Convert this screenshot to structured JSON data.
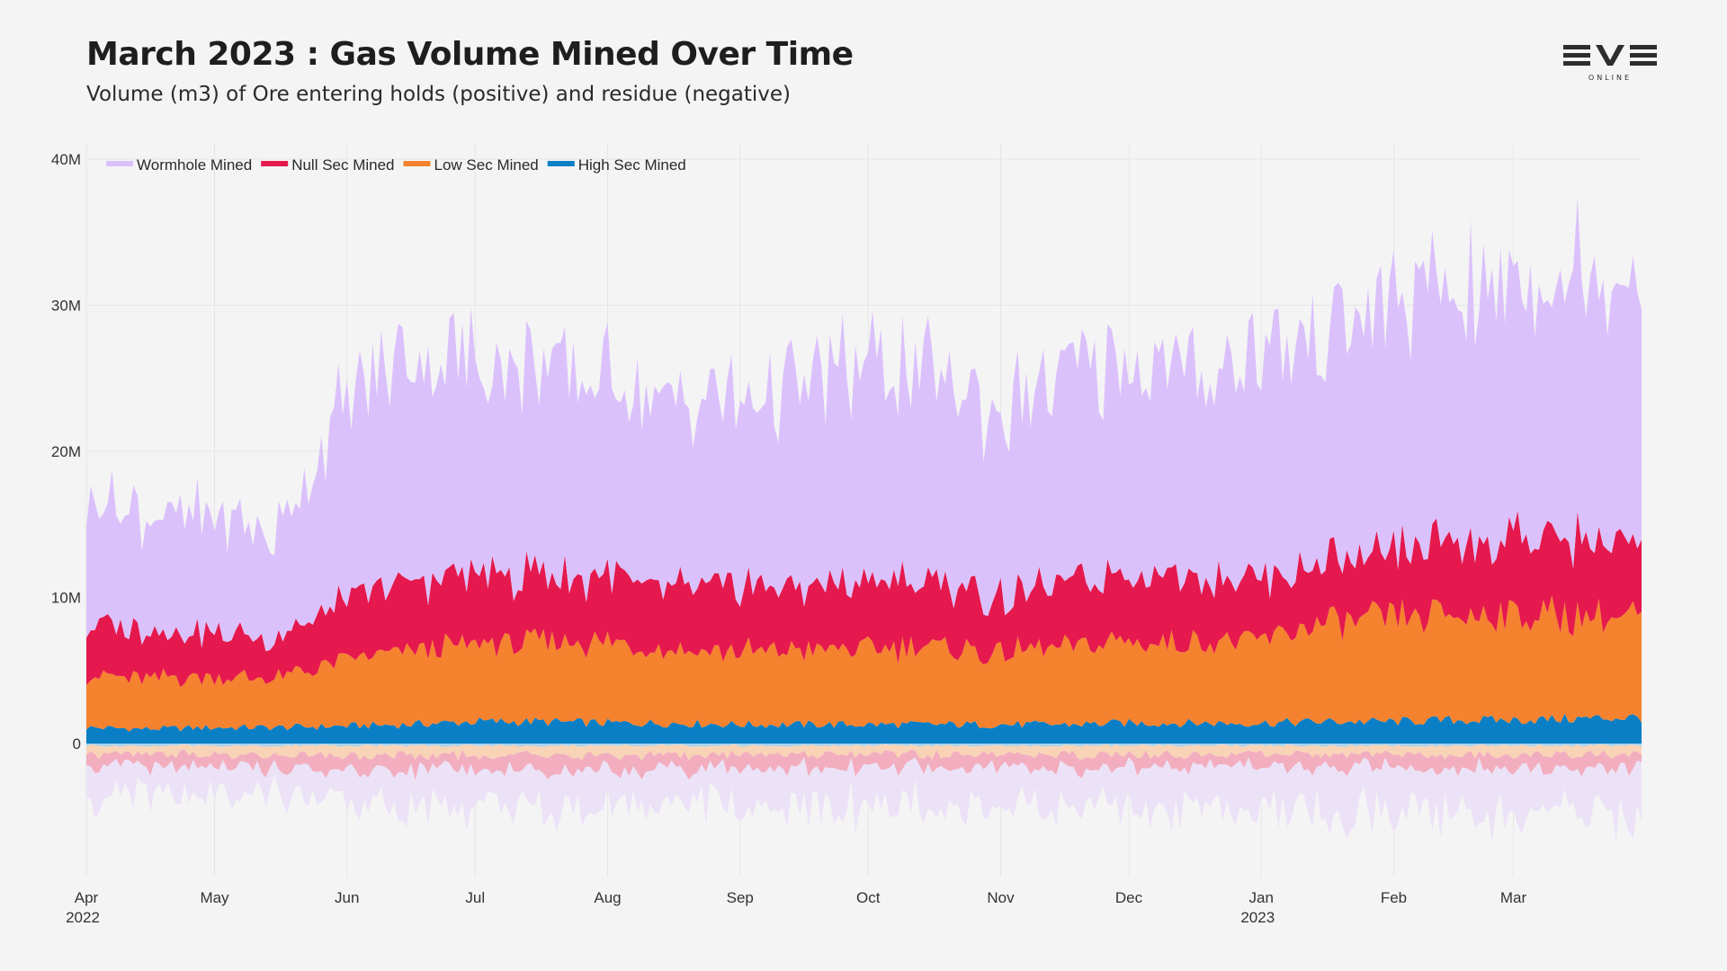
{
  "header": {
    "title": "March 2023 : Gas Volume Mined Over Time",
    "subtitle": "Volume (m3) of Ore entering holds (positive) and residue (negative)",
    "logo_text": "EVE",
    "logo_subtext": "ONLINE"
  },
  "chart_data": {
    "type": "area",
    "title": "March 2023 : Gas Volume Mined Over Time",
    "subtitle": "Volume (m3) of Ore entering holds (positive) and residue (negative)",
    "xlabel": "",
    "ylabel": "",
    "x_range": [
      "2022-04-01",
      "2023-03-31"
    ],
    "ylim": [
      -10000000,
      40000000
    ],
    "y_ticks": [
      {
        "value": 40000000,
        "label": "40M"
      },
      {
        "value": 30000000,
        "label": "30M"
      },
      {
        "value": 20000000,
        "label": "20M"
      },
      {
        "value": 10000000,
        "label": "10M"
      },
      {
        "value": 0,
        "label": "0"
      }
    ],
    "x_ticks": [
      {
        "date": "2022-04-01",
        "label": "Apr",
        "sublabel": "2022"
      },
      {
        "date": "2022-05-01",
        "label": "May",
        "sublabel": ""
      },
      {
        "date": "2022-06-01",
        "label": "Jun",
        "sublabel": ""
      },
      {
        "date": "2022-07-01",
        "label": "Jul",
        "sublabel": ""
      },
      {
        "date": "2022-08-01",
        "label": "Aug",
        "sublabel": ""
      },
      {
        "date": "2022-09-01",
        "label": "Sep",
        "sublabel": ""
      },
      {
        "date": "2022-10-01",
        "label": "Oct",
        "sublabel": ""
      },
      {
        "date": "2022-11-01",
        "label": "Nov",
        "sublabel": ""
      },
      {
        "date": "2022-12-01",
        "label": "Dec",
        "sublabel": ""
      },
      {
        "date": "2023-01-01",
        "label": "Jan",
        "sublabel": "2023"
      },
      {
        "date": "2023-02-01",
        "label": "Feb",
        "sublabel": ""
      },
      {
        "date": "2023-03-01",
        "label": "Mar",
        "sublabel": ""
      }
    ],
    "stacked": true,
    "grid": true,
    "legend_position": "top-left",
    "series": [
      {
        "name": "High Sec Mined",
        "color": "#0a7fc6",
        "residue_color": "#a9d4ee",
        "x": [
          "2022-04-01",
          "2022-04-15",
          "2022-05-01",
          "2022-05-15",
          "2022-06-01",
          "2022-06-15",
          "2022-07-01",
          "2022-07-15",
          "2022-08-01",
          "2022-08-15",
          "2022-09-01",
          "2022-09-15",
          "2022-10-01",
          "2022-10-15",
          "2022-11-01",
          "2022-11-15",
          "2022-12-01",
          "2022-12-15",
          "2023-01-01",
          "2023-01-15",
          "2023-02-01",
          "2023-02-15",
          "2023-03-01",
          "2023-03-15",
          "2023-03-31"
        ],
        "values": [
          1100000,
          1000000,
          1100000,
          1100000,
          1200000,
          1300000,
          1500000,
          1500000,
          1400000,
          1400000,
          1300000,
          1300000,
          1300000,
          1300000,
          1300000,
          1300000,
          1400000,
          1400000,
          1400000,
          1500000,
          1500000,
          1600000,
          1600000,
          1700000,
          1800000
        ],
        "residue": [
          -150000,
          -150000,
          -150000,
          -150000,
          -150000,
          -150000,
          -150000,
          -150000,
          -150000,
          -150000,
          -150000,
          -150000,
          -150000,
          -150000,
          -150000,
          -150000,
          -150000,
          -150000,
          -150000,
          -150000,
          -150000,
          -150000,
          -150000,
          -150000,
          -150000
        ]
      },
      {
        "name": "Low Sec Mined",
        "color": "#f5822e",
        "residue_color": "#f9d3b6",
        "x": [
          "2022-04-01",
          "2022-04-15",
          "2022-05-01",
          "2022-05-15",
          "2022-06-01",
          "2022-06-15",
          "2022-07-01",
          "2022-07-15",
          "2022-08-01",
          "2022-08-15",
          "2022-09-01",
          "2022-09-15",
          "2022-10-01",
          "2022-10-15",
          "2022-11-01",
          "2022-11-15",
          "2022-12-01",
          "2022-12-15",
          "2023-01-01",
          "2023-01-15",
          "2023-02-01",
          "2023-02-15",
          "2023-03-01",
          "2023-03-15",
          "2023-03-31"
        ],
        "values": [
          3600000,
          3400000,
          3500000,
          3300000,
          4500000,
          5000000,
          5300000,
          5400000,
          5500000,
          5200000,
          5000000,
          5100000,
          5200000,
          5300000,
          4900000,
          5200000,
          5600000,
          5600000,
          5700000,
          6700000,
          7000000,
          7200000,
          7300000,
          7000000,
          6900000
        ],
        "residue": [
          -600000,
          -600000,
          -600000,
          -600000,
          -650000,
          -650000,
          -650000,
          -650000,
          -650000,
          -650000,
          -600000,
          -600000,
          -600000,
          -600000,
          -600000,
          -600000,
          -600000,
          -600000,
          -600000,
          -600000,
          -600000,
          -600000,
          -600000,
          -600000,
          -600000
        ]
      },
      {
        "name": "Null Sec Mined",
        "color": "#e5194d",
        "residue_color": "#f2aebf",
        "x": [
          "2022-04-01",
          "2022-04-15",
          "2022-05-01",
          "2022-05-15",
          "2022-06-01",
          "2022-06-15",
          "2022-07-01",
          "2022-07-15",
          "2022-08-01",
          "2022-08-15",
          "2022-09-01",
          "2022-09-15",
          "2022-10-01",
          "2022-10-15",
          "2022-11-01",
          "2022-11-15",
          "2022-12-01",
          "2022-12-15",
          "2023-01-01",
          "2023-01-15",
          "2023-02-01",
          "2023-02-15",
          "2023-03-01",
          "2023-03-15",
          "2023-03-31"
        ],
        "values": [
          3600000,
          3200000,
          3100000,
          2700000,
          4000000,
          4600000,
          4800000,
          4500000,
          4600000,
          4300000,
          4400000,
          4300000,
          4600000,
          4500000,
          3800000,
          4200000,
          4800000,
          4900000,
          4000000,
          4200000,
          4300000,
          4700000,
          5400000,
          5300000,
          5000000
        ],
        "residue": [
          -900000,
          -900000,
          -900000,
          -900000,
          -950000,
          -1000000,
          -1000000,
          -1000000,
          -950000,
          -950000,
          -900000,
          -900000,
          -900000,
          -900000,
          -850000,
          -850000,
          -850000,
          -850000,
          -850000,
          -850000,
          -850000,
          -900000,
          -900000,
          -900000,
          -900000
        ]
      },
      {
        "name": "Wormhole Mined",
        "color": "#dbc1fc",
        "residue_color": "#ece2f7",
        "x": [
          "2022-04-01",
          "2022-04-15",
          "2022-05-01",
          "2022-05-15",
          "2022-06-01",
          "2022-06-15",
          "2022-07-01",
          "2022-07-15",
          "2022-08-01",
          "2022-08-15",
          "2022-09-01",
          "2022-09-15",
          "2022-10-01",
          "2022-10-15",
          "2022-11-01",
          "2022-11-15",
          "2022-12-01",
          "2022-12-15",
          "2023-01-01",
          "2023-01-15",
          "2023-02-01",
          "2023-02-15",
          "2023-03-01",
          "2023-03-15",
          "2023-03-31"
        ],
        "values": [
          8700000,
          8100000,
          8000000,
          7200000,
          13400000,
          15600000,
          14600000,
          14300000,
          13500000,
          12400000,
          12700000,
          13700000,
          14900000,
          14100000,
          12900000,
          13900000,
          14900000,
          13900000,
          15700000,
          15700000,
          16900000,
          17200000,
          17700000,
          18300000,
          18800000
        ],
        "residue": [
          -2200000,
          -2100000,
          -2000000,
          -1900000,
          -2200000,
          -2600000,
          -2700000,
          -2700000,
          -2500000,
          -2500000,
          -2400000,
          -2500000,
          -2700000,
          -2600000,
          -2500000,
          -2500000,
          -2800000,
          -2900000,
          -3000000,
          -3000000,
          -3100000,
          -3100000,
          -3200000,
          -3200000,
          -3300000
        ]
      }
    ]
  }
}
